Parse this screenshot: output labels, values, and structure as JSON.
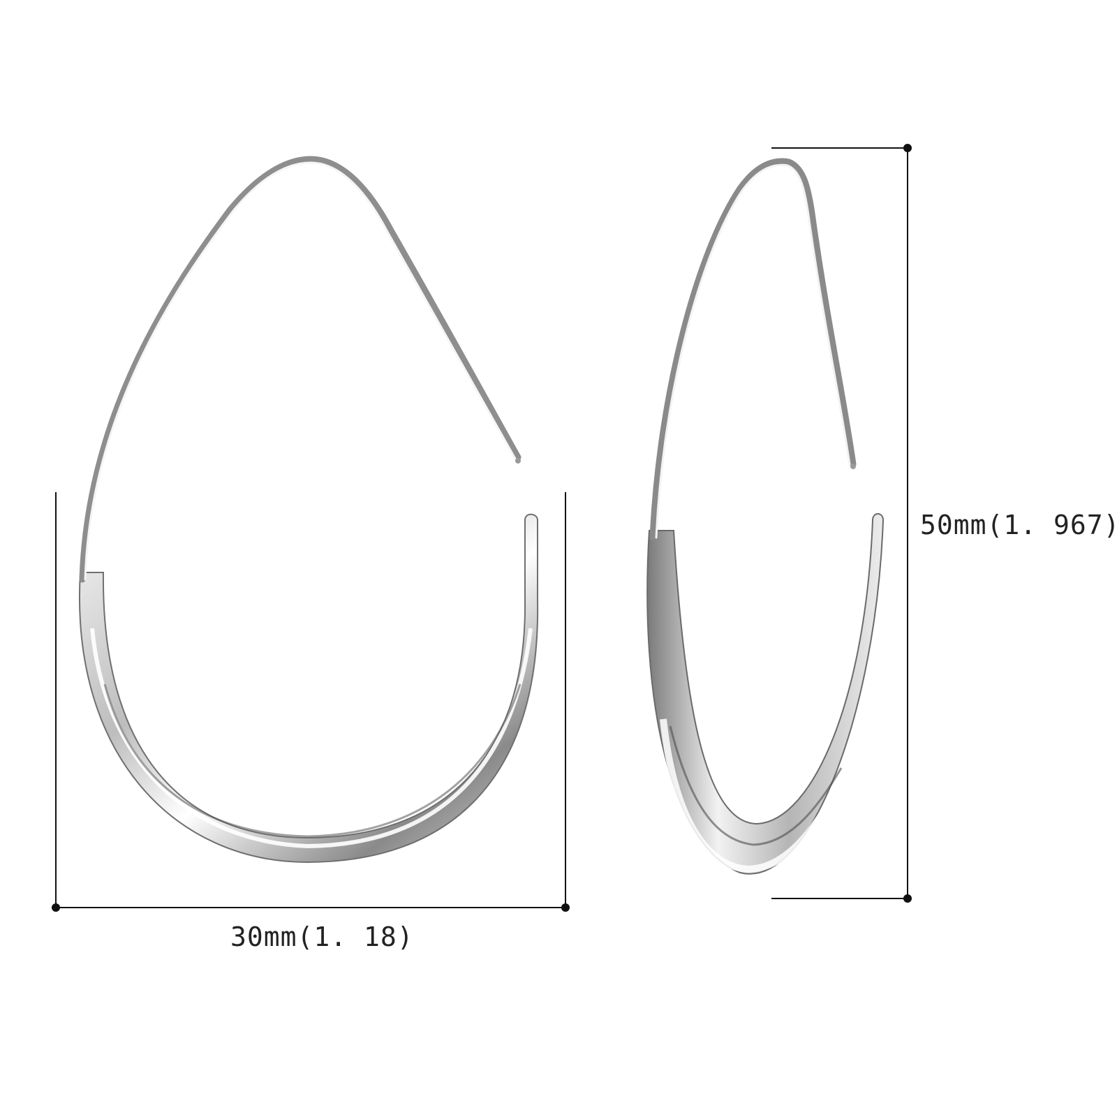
{
  "dimensions": {
    "width_label": "30mm(1. 18)",
    "height_label": "50mm(1. 967)"
  },
  "colors": {
    "background": "#ffffff",
    "dimension_line": "#111111",
    "metal_light": "#ffffff",
    "metal_mid": "#cfcfcf",
    "metal_dark": "#6e6e6e"
  },
  "product": {
    "views": [
      "front-view",
      "side-view"
    ]
  }
}
